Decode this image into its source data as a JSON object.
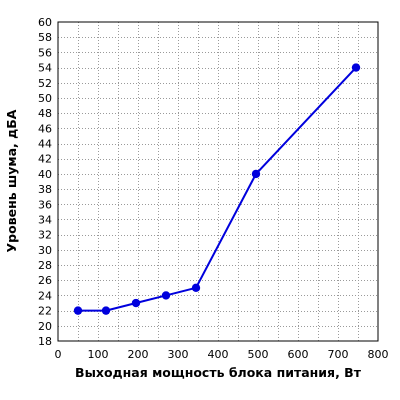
{
  "chart_data": {
    "type": "line",
    "title": "",
    "xlabel": "Выходная мощность блока питания, Вт",
    "ylabel": "Уровень шума, дБА",
    "xlim": [
      0,
      800
    ],
    "ylim": [
      18,
      60
    ],
    "xticks": [
      0,
      100,
      200,
      300,
      400,
      500,
      600,
      700,
      800
    ],
    "yticks": [
      18,
      20,
      22,
      24,
      26,
      28,
      30,
      32,
      34,
      36,
      38,
      40,
      42,
      44,
      46,
      48,
      50,
      52,
      54,
      56,
      58,
      60
    ],
    "grid": true,
    "legend": "none",
    "series": [
      {
        "color": "#0000dd",
        "points": [
          {
            "x": 50,
            "y": 22
          },
          {
            "x": 120,
            "y": 22
          },
          {
            "x": 195,
            "y": 23
          },
          {
            "x": 270,
            "y": 24
          },
          {
            "x": 345,
            "y": 25
          },
          {
            "x": 495,
            "y": 40
          },
          {
            "x": 745,
            "y": 54
          }
        ]
      }
    ]
  }
}
